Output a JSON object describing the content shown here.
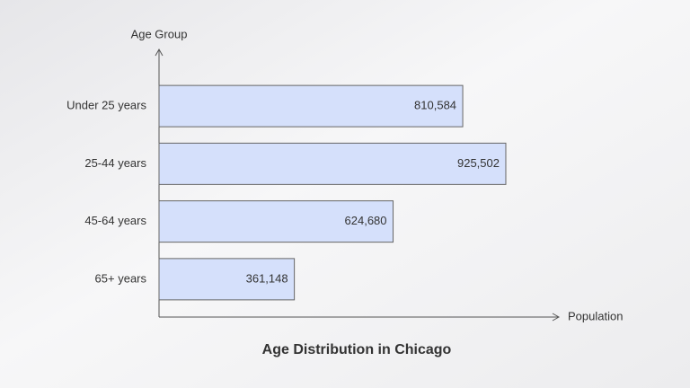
{
  "chart_data": {
    "type": "bar",
    "orientation": "horizontal",
    "title": "Age Distribution in Chicago",
    "x_label": "Population",
    "y_label": "Age Group",
    "categories": [
      "Under 25 years",
      "25-44 years",
      "45-64 years",
      "65+ years"
    ],
    "values": [
      810584,
      925502,
      624680,
      361148
    ],
    "value_labels": [
      "810,584",
      "925,502",
      "624,680",
      "361,148"
    ],
    "color": "#d5e0fb",
    "xlim": [
      0,
      1067000
    ]
  }
}
